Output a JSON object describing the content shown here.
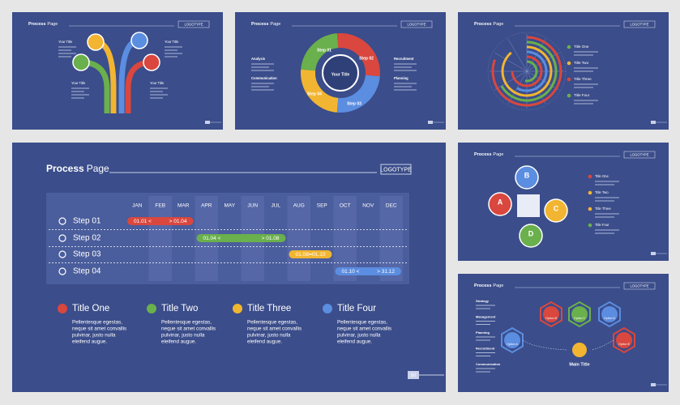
{
  "slides": {
    "timeline": {
      "title": "Process",
      "title_accent": "Page",
      "logo": "LOGOTYPE",
      "months": [
        "JAN",
        "FEB",
        "MAR",
        "APR",
        "MAY",
        "JUN",
        "JUL",
        "AUG",
        "SEP",
        "OCT",
        "NOV",
        "DEC"
      ],
      "steps": [
        {
          "label": "Step 01",
          "start": "01.01 <",
          "end": "> 01.04"
        },
        {
          "label": "Step 02",
          "start": "01.04 <",
          "end": "> 01.08"
        },
        {
          "label": "Step 03",
          "start": "01.08 <",
          "end": "> 01.10"
        },
        {
          "label": "Step 04",
          "start": "01.10 <",
          "end": "> 31.12"
        }
      ],
      "legend": [
        {
          "title": "Title One",
          "text": [
            "Pellentesque egestas,",
            "neque sit amet convallis",
            "pulvinar, justo nulla",
            "eleifend augue."
          ]
        },
        {
          "title": "Title Two",
          "text": [
            "Pellentesque egestas,",
            "neque sit amet convallis",
            "pulvinar, justo nulla",
            "eleifend augue."
          ]
        },
        {
          "title": "Title Three",
          "text": [
            "Pellentesque egestas,",
            "neque sit amet convallis",
            "pulvinar, justo nulla",
            "eleifend augue."
          ]
        },
        {
          "title": "Title Four",
          "text": [
            "Pellentesque egestas,",
            "neque sit amet convallis",
            "pulvinar, justo nulla",
            "eleifend augue."
          ]
        }
      ],
      "page": "50"
    },
    "tree": {
      "title": "Process",
      "title_accent": "Page",
      "logo": "LOGOTYPE",
      "labels": [
        "Your Title",
        "Your Title",
        "Your Title",
        "Your Title"
      ]
    },
    "cycle": {
      "title": "Process",
      "title_accent": "Page",
      "logo": "LOGOTYPE",
      "center": "Your Title",
      "steps": [
        "Step 01",
        "Step 02",
        "Step 03",
        "Step 04"
      ],
      "labels": [
        "Analysis",
        "Communication",
        "Recruitment",
        "Planning"
      ]
    },
    "radial": {
      "title": "Process",
      "title_accent": "Page",
      "logo": "LOGOTYPE",
      "titles": [
        "Title One",
        "Title Two",
        "Title Three",
        "Title Four"
      ]
    },
    "puzzle": {
      "title": "Process",
      "title_accent": "Page",
      "logo": "LOGOTYPE",
      "letters": [
        "A",
        "B",
        "C",
        "D"
      ],
      "titles": [
        "Title One",
        "Title Two",
        "Title Three",
        "Title Four"
      ]
    },
    "hex": {
      "title": "Process",
      "title_accent": "Page",
      "logo": "LOGOTYPE",
      "labels": [
        "Strategy",
        "Management",
        "Planning",
        "Recruitment",
        "Communication"
      ],
      "options": [
        "Option A",
        "Option B",
        "Option C",
        "Option D",
        "Option E"
      ],
      "main": "Main Title"
    }
  }
}
